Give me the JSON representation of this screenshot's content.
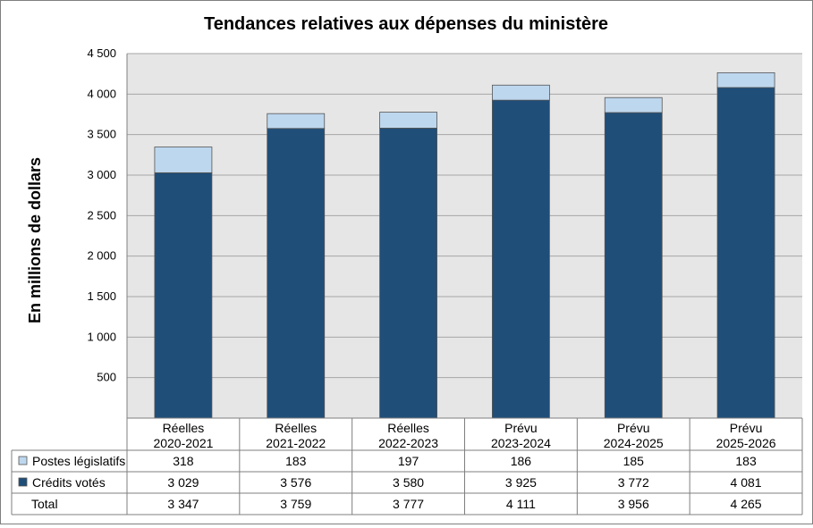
{
  "chart_data": {
    "type": "bar",
    "stacked": true,
    "title": "Tendances relatives aux dépenses du ministère",
    "ylabel": "En millions de dollars",
    "ylim": [
      0,
      4500
    ],
    "yticks": [
      "4 500",
      "4 000",
      "3 500",
      "3 000",
      "2 500",
      "2 000",
      "1 500",
      "1 000",
      "500"
    ],
    "ytick_values": [
      4500,
      4000,
      3500,
      3000,
      2500,
      2000,
      1500,
      1000,
      500
    ],
    "grid": true,
    "categories": [
      [
        "Réelles",
        "2020-2021"
      ],
      [
        "Réelles",
        "2021-2022"
      ],
      [
        "Réelles",
        "2022-2023"
      ],
      [
        "Prévu",
        "2023-2024"
      ],
      [
        "Prévu",
        "2024-2025"
      ],
      [
        "Prévu",
        "2025-2026"
      ]
    ],
    "series": [
      {
        "name": "Crédits votés",
        "color": "#1f4e79",
        "values": [
          3029,
          3576,
          3580,
          3925,
          3772,
          4081
        ],
        "labels": [
          "3 029",
          "3 576",
          "3 580",
          "3 925",
          "3 772",
          "4 081"
        ]
      },
      {
        "name": "Postes législatifs",
        "color": "#bdd7ee",
        "values": [
          318,
          183,
          197,
          186,
          185,
          183
        ],
        "labels": [
          "318",
          "183",
          "197",
          "186",
          "185",
          "183"
        ]
      }
    ],
    "table": {
      "rows": [
        {
          "label": "Postes législatifs",
          "swatch": "#bdd7ee",
          "values": [
            "318",
            "183",
            "197",
            "186",
            "185",
            "183"
          ]
        },
        {
          "label": "Crédits votés",
          "swatch": "#1f4e79",
          "values": [
            "3 029",
            "3 576",
            "3 580",
            "3 925",
            "3 772",
            "4 081"
          ]
        },
        {
          "label": "Total",
          "swatch": null,
          "values": [
            "3 347",
            "3 759",
            "3 777",
            "4 111",
            "3 956",
            "4 265"
          ]
        }
      ]
    }
  }
}
